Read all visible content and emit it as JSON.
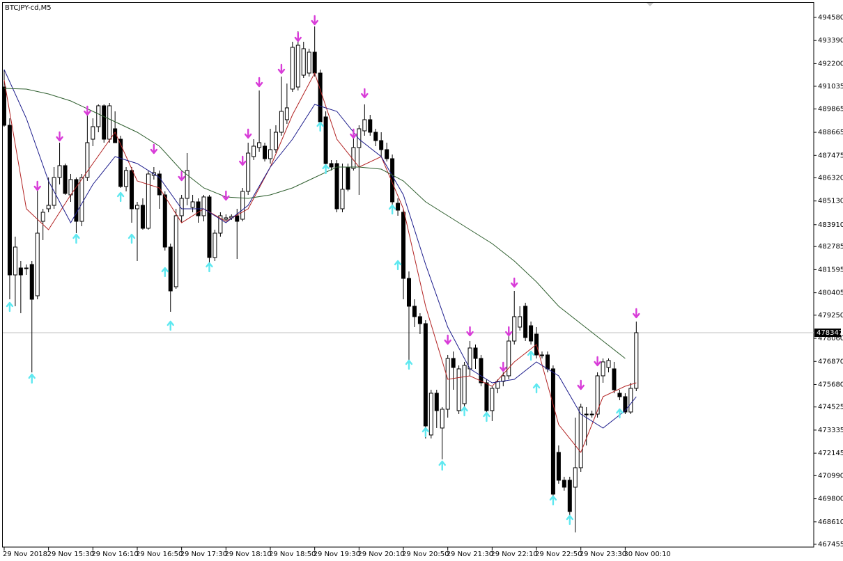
{
  "chart_data": {
    "type": "candlestick",
    "title": "BTCJPY-cd,M5",
    "xlim": [
      -0.75,
      146
    ],
    "ylim": [
      467312,
      495476
    ],
    "yticks": [
      494580,
      493390,
      492200,
      491035,
      489865,
      488665,
      487475,
      486320,
      485130,
      483910,
      482785,
      481595,
      480405,
      479250,
      478060,
      476870,
      475680,
      474525,
      473335,
      472145,
      470990,
      469800,
      468610,
      467455
    ],
    "xticks": [
      {
        "value": 0,
        "label": "29 Nov 2018"
      },
      {
        "value": 8,
        "label": "29 Nov 15:30"
      },
      {
        "value": 16,
        "label": "29 Nov 16:10"
      },
      {
        "value": 24,
        "label": "29 Nov 16:50"
      },
      {
        "value": 32,
        "label": "29 Nov 17:30"
      },
      {
        "value": 40,
        "label": "29 Nov 18:10"
      },
      {
        "value": 48,
        "label": "29 Nov 18:50"
      },
      {
        "value": 56,
        "label": "29 Nov 19:30"
      },
      {
        "value": 64,
        "label": "29 Nov 20:10"
      },
      {
        "value": 72,
        "label": "29 Nov 20:50"
      },
      {
        "value": 80,
        "label": "29 Nov 21:30"
      },
      {
        "value": 88,
        "label": "29 Nov 22:10"
      },
      {
        "value": 96,
        "label": "29 Nov 22:50"
      },
      {
        "value": 104,
        "label": "29 Nov 23:30"
      },
      {
        "value": 112,
        "label": "30 Nov 00:10"
      }
    ],
    "up_color": "#ffffff",
    "down_color": "#000000",
    "last_price": 478347,
    "open": [
      490997,
      489027,
      481323,
      481681,
      481681,
      481861,
      480248,
      484082,
      484727,
      484906,
      486340,
      486949,
      485444,
      486233,
      484082,
      486340,
      488310,
      488955,
      490030,
      488310,
      488847,
      488310,
      485874,
      486698,
      484727,
      484906,
      483724,
      486448,
      486519,
      485444,
      482757,
      480714,
      484369,
      485264,
      484799,
      485085,
      484369,
      485337,
      482219,
      483473,
      484190,
      484261,
      484369,
      484190,
      485624,
      487415,
      487880,
      487952,
      487307,
      487773,
      488668,
      489314,
      490890,
      490997,
      491606,
      491714,
      492790,
      491714,
      489457,
      487056,
      487056,
      484727,
      486877,
      486805,
      487880,
      488740,
      489314,
      488668,
      488238,
      487773,
      487307,
      485013,
      484548,
      481144,
      479711,
      479174,
      478815,
      473083,
      475233,
      473441,
      474408,
      477024,
      474337,
      474695,
      476487,
      477561,
      477024,
      475770,
      474337,
      475484,
      475842,
      476128,
      477919,
      478636,
      479711,
      478707,
      478278,
      477203,
      477203,
      476487,
      472187,
      470753,
      470753,
      470395,
      471398,
      474158,
      474157,
      474157,
      476128,
      476558,
      476487,
      475233,
      475054,
      474265,
      475484
    ],
    "high": [
      491893,
      489385,
      483294,
      482040,
      481861,
      482040,
      485802,
      484727,
      486340,
      486877,
      488131,
      487056,
      486519,
      486340,
      486519,
      489564,
      489385,
      490102,
      490102,
      490173,
      489744,
      488489,
      486877,
      486877,
      485085,
      485264,
      486698,
      486877,
      486698,
      485624,
      482936,
      484727,
      485444,
      487594,
      485444,
      485264,
      485444,
      485444,
      483652,
      484548,
      484441,
      484441,
      484727,
      485802,
      488131,
      488310,
      490819,
      488131,
      488847,
      489027,
      491535,
      491177,
      493326,
      493864,
      493326,
      492969,
      494115,
      491893,
      489744,
      487235,
      487235,
      487056,
      487056,
      488489,
      489027,
      490102,
      489564,
      488847,
      488668,
      488131,
      487522,
      485264,
      484727,
      481502,
      480069,
      479353,
      478994,
      475412,
      475412,
      474516,
      477203,
      477382,
      476666,
      476845,
      477919,
      477740,
      477203,
      475949,
      475591,
      475949,
      476308,
      478278,
      480499,
      479711,
      479890,
      478923,
      478636,
      477382,
      477382,
      476666,
      472545,
      470932,
      470932,
      473978,
      474695,
      474516,
      474337,
      476308,
      477024,
      477024,
      476845,
      475412,
      475233,
      475770,
      478923
    ],
    "low": [
      488955,
      480069,
      479711,
      479353,
      481323,
      476307,
      480069,
      483115,
      484548,
      484727,
      485982,
      485444,
      485085,
      483473,
      483831,
      486161,
      487952,
      488668,
      488131,
      488131,
      488131,
      485802,
      485624,
      484010,
      482040,
      483652,
      483652,
      486233,
      484727,
      482578,
      479425,
      480606,
      484010,
      484906,
      484548,
      484010,
      484082,
      481932,
      482040,
      483294,
      484082,
      484154,
      482147,
      484082,
      485444,
      487236,
      487665,
      487164,
      487056,
      487594,
      488489,
      489099,
      490747,
      490819,
      491463,
      491535,
      491535,
      489027,
      486877,
      486698,
      484548,
      484548,
      485624,
      486698,
      485444,
      488489,
      488489,
      487952,
      487415,
      487164,
      484906,
      484369,
      480069,
      476844,
      478636,
      478278,
      472904,
      472904,
      473441,
      471829,
      473978,
      475412,
      474157,
      474516,
      476128,
      476487,
      475591,
      473978,
      473799,
      475233,
      475591,
      475949,
      477740,
      478457,
      477919,
      477740,
      477024,
      477024,
      476308,
      469679,
      470574,
      470216,
      468783,
      468067,
      471183,
      472545,
      473978,
      473978,
      475770,
      476308,
      475233,
      474874,
      474157,
      474157,
      475340
    ],
    "close": [
      489027,
      481323,
      482757,
      481323,
      481645,
      480069,
      483473,
      484548,
      484906,
      486340,
      486949,
      485516,
      486233,
      484082,
      486340,
      488131,
      488955,
      490030,
      488310,
      490030,
      488131,
      485874,
      486698,
      484727,
      484906,
      483724,
      486519,
      486590,
      485444,
      482757,
      480499,
      484369,
      485264,
      486698,
      485085,
      484369,
      485337,
      482219,
      483473,
      484369,
      484261,
      484333,
      484082,
      485624,
      487594,
      487952,
      488131,
      487307,
      487773,
      488668,
      489744,
      489923,
      493040,
      493147,
      492969,
      492790,
      491714,
      489206,
      487056,
      486877,
      484727,
      485731,
      485731,
      487880,
      488847,
      489314,
      488668,
      488238,
      487773,
      487307,
      485085,
      484655,
      481144,
      479711,
      479174,
      478815,
      473549,
      475233,
      474337,
      474408,
      477024,
      476558,
      476487,
      476666,
      477561,
      477024,
      475770,
      474337,
      475484,
      475842,
      476128,
      477919,
      479174,
      479174,
      478099,
      477919,
      477203,
      477167,
      476487,
      470037,
      470753,
      470395,
      469141,
      471398,
      474516,
      474121,
      474121,
      476128,
      476845,
      476917,
      475412,
      475054,
      474265,
      475484,
      478349
    ],
    "series": [
      {
        "color": "#b22222",
        "x": [
          0,
          4,
          8,
          12,
          16,
          20,
          24,
          28,
          32,
          36,
          40,
          44,
          48,
          52,
          56,
          60,
          64,
          68,
          72,
          76,
          80,
          84,
          88,
          92,
          96,
          100,
          104,
          108,
          112,
          114
        ],
        "values": [
          491356,
          484727,
          483652,
          485444,
          487056,
          488668,
          486161,
          485802,
          484010,
          484727,
          484082,
          484727,
          486877,
          489564,
          491714,
          488310,
          486877,
          487415,
          484727,
          479711,
          475949,
          476128,
          475591,
          476845,
          477740,
          473620,
          472187,
          475054,
          475591,
          475770
        ]
      },
      {
        "color": "#1c1c8c",
        "x": [
          0,
          4,
          8,
          12,
          16,
          20,
          24,
          28,
          32,
          36,
          40,
          44,
          48,
          52,
          56,
          60,
          64,
          68,
          72,
          76,
          80,
          84,
          88,
          92,
          96,
          100,
          104,
          108,
          112,
          114
        ],
        "values": [
          491893,
          489385,
          486161,
          484010,
          485982,
          487415,
          487056,
          486340,
          484727,
          484727,
          484010,
          484906,
          486877,
          488310,
          490102,
          489744,
          488310,
          487415,
          485444,
          481861,
          478636,
          476487,
          475770,
          475949,
          476845,
          476128,
          474157,
          473441,
          474337,
          475054
        ]
      },
      {
        "color": "#2e5e2e",
        "x": [
          0,
          4,
          8,
          12,
          16,
          20,
          24,
          28,
          32,
          36,
          40,
          44,
          48,
          52,
          56,
          60,
          64,
          68,
          72,
          76,
          80,
          84,
          88,
          92,
          96,
          100,
          104,
          108,
          112
        ],
        "values": [
          490926,
          490890,
          490639,
          490281,
          489744,
          489206,
          488668,
          487952,
          486698,
          485802,
          485337,
          485265,
          485444,
          485802,
          486340,
          486877,
          486877,
          486769,
          486161,
          485085,
          484369,
          483652,
          482936,
          482040,
          480965,
          479711,
          478815,
          477919,
          477024
        ]
      }
    ],
    "markers": [
      {
        "symbol": "down",
        "color": "#d83cd8",
        "x": [
          6,
          10,
          15,
          27,
          32,
          40,
          43,
          44,
          46,
          50,
          53,
          56,
          63,
          65,
          80,
          84,
          90,
          91,
          92,
          104,
          107,
          114
        ],
        "values": [
          485874,
          488418,
          489744,
          487773,
          486376,
          485372,
          487164,
          488561,
          491212,
          491893,
          493541,
          494401,
          488561,
          490639,
          477955,
          478385,
          476558,
          478385,
          480893,
          475627,
          476845,
          479317
        ]
      },
      {
        "symbol": "up",
        "color": "#5ee8f0",
        "x": [
          1,
          5,
          13,
          21,
          23,
          29,
          30,
          37,
          57,
          58,
          70,
          71,
          73,
          76,
          79,
          83,
          87,
          95,
          96,
          99,
          102,
          111
        ],
        "values": [
          479711,
          476021,
          483222,
          485372,
          483222,
          481502,
          478744,
          481753,
          488991,
          486806,
          484727,
          481861,
          476737,
          473261,
          471542,
          474337,
          474050,
          477203,
          475520,
          469750,
          468747,
          474229
        ]
      }
    ]
  }
}
